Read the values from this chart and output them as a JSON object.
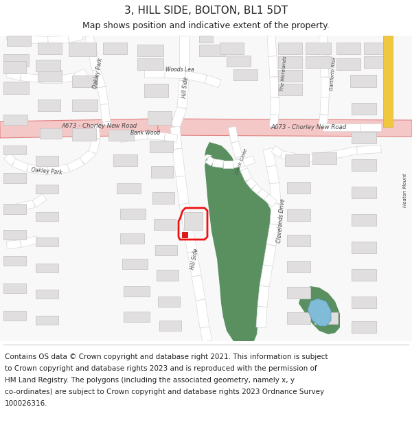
{
  "title": "3, HILL SIDE, BOLTON, BL1 5DT",
  "subtitle": "Map shows position and indicative extent of the property.",
  "title_fontsize": 11,
  "subtitle_fontsize": 9,
  "footer_lines": [
    "Contains OS data © Crown copyright and database right 2021. This information is subject",
    "to Crown copyright and database rights 2023 and is reproduced with the permission of",
    "HM Land Registry. The polygons (including the associated geometry, namely x, y",
    "co-ordinates) are subject to Crown copyright and database rights 2023 Ordnance Survey",
    "100026316."
  ],
  "footer_fontsize": 7.5,
  "map_bg": "#f8f8f8",
  "road_color": "#ffffff",
  "road_outline": "#d8d8d8",
  "main_road_color": "#f5c8c8",
  "main_road_outline": "#e08080",
  "building_fill": "#e0dede",
  "building_outline": "#c8c6c6",
  "green_fill": "#5a9060",
  "blue_fill": "#80bcd8",
  "yellow_fill": "#f0c840",
  "red_outline": "#ee1111",
  "red_fill": "#ee1111",
  "text_color": "#222222",
  "road_label_color": "#444444",
  "header_bg": "#ffffff",
  "footer_bg": "#ffffff",
  "divider_color": "#cccccc"
}
